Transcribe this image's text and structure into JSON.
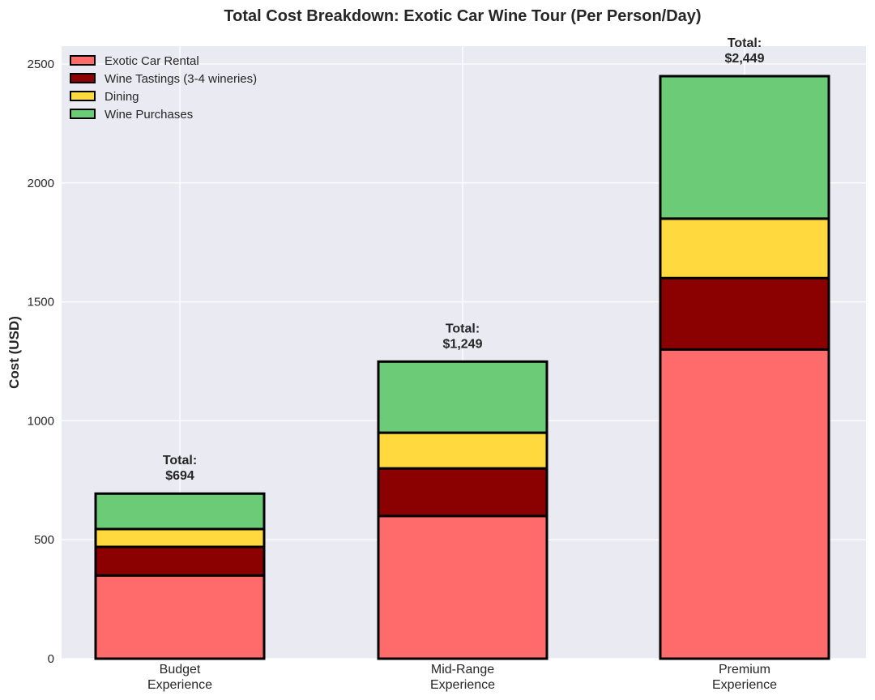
{
  "chart_data": {
    "type": "bar",
    "stacked": true,
    "title": "Total Cost Breakdown: Exotic Car Wine Tour (Per Person/Day)",
    "xlabel": "",
    "ylabel": "Cost (USD)",
    "ylim": [
      0,
      2575
    ],
    "yticks": [
      0,
      500,
      1000,
      1500,
      2000,
      2500
    ],
    "categories": [
      [
        "Budget",
        "Experience"
      ],
      [
        "Mid-Range",
        "Experience"
      ],
      [
        "Premium",
        "Experience"
      ]
    ],
    "series": [
      {
        "name": "Exotic Car Rental",
        "color": "#ff6b6b",
        "values": [
          350,
          600,
          1300
        ]
      },
      {
        "name": "Wine Tastings (3-4 wineries)",
        "color": "#8b0000",
        "values": [
          120,
          200,
          300
        ]
      },
      {
        "name": "Dining",
        "color": "#ffd93d",
        "values": [
          75,
          150,
          250
        ]
      },
      {
        "name": "Wine Purchases",
        "color": "#6bcb77",
        "values": [
          149,
          299,
          599
        ]
      }
    ],
    "total_labels": [
      [
        "Total:",
        "$694"
      ],
      [
        "Total:",
        "$1,249"
      ],
      [
        "Total:",
        "$2,449"
      ]
    ],
    "grid": true,
    "legend_position": "top-left"
  }
}
